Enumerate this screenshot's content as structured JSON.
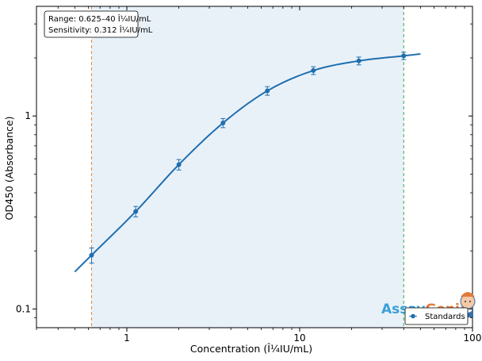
{
  "chart_data": {
    "type": "scatter",
    "xlabel": "Concentration (Î¼IU/mL)",
    "ylabel": "OD450 (Absorbance)",
    "x_scale": "log",
    "y_scale": "log",
    "xlim": [
      0.3,
      100
    ],
    "ylim": [
      0.08,
      3.7
    ],
    "x_ticks": [
      1,
      10,
      100
    ],
    "x_tick_labels": [
      "1",
      "10",
      "100"
    ],
    "y_ticks": [
      0.1,
      1
    ],
    "y_tick_labels": [
      "0.1",
      "1"
    ],
    "grid": false,
    "legend_position": "bottom-right",
    "info_box": [
      "Range: 0.625–40 Î¼IU/mL",
      "Sensitivity: 0.312 Î¼IU/mL"
    ],
    "range_lines": [
      0.625,
      40
    ],
    "series": [
      {
        "name": "Standards",
        "points": [
          {
            "x": 0.625,
            "y": 0.19,
            "err": 0.017
          },
          {
            "x": 1.125,
            "y": 0.32,
            "err": 0.02
          },
          {
            "x": 2.0,
            "y": 0.56,
            "err": 0.035
          },
          {
            "x": 3.6,
            "y": 0.92,
            "err": 0.05
          },
          {
            "x": 6.5,
            "y": 1.35,
            "err": 0.07
          },
          {
            "x": 12.0,
            "y": 1.72,
            "err": 0.08
          },
          {
            "x": 22.0,
            "y": 1.93,
            "err": 0.09
          },
          {
            "x": 40.0,
            "y": 2.05,
            "err": 0.09
          }
        ]
      }
    ],
    "fit_curve": {
      "x_start": 0.5,
      "x_end": 50
    },
    "colors": {
      "series": "#1f6fb0",
      "lower_line": "#e08a3c",
      "upper_line": "#3da84a",
      "shade": "#e9f1f8"
    }
  },
  "logo": {
    "part1": "Assay",
    "part2": "Genie"
  }
}
